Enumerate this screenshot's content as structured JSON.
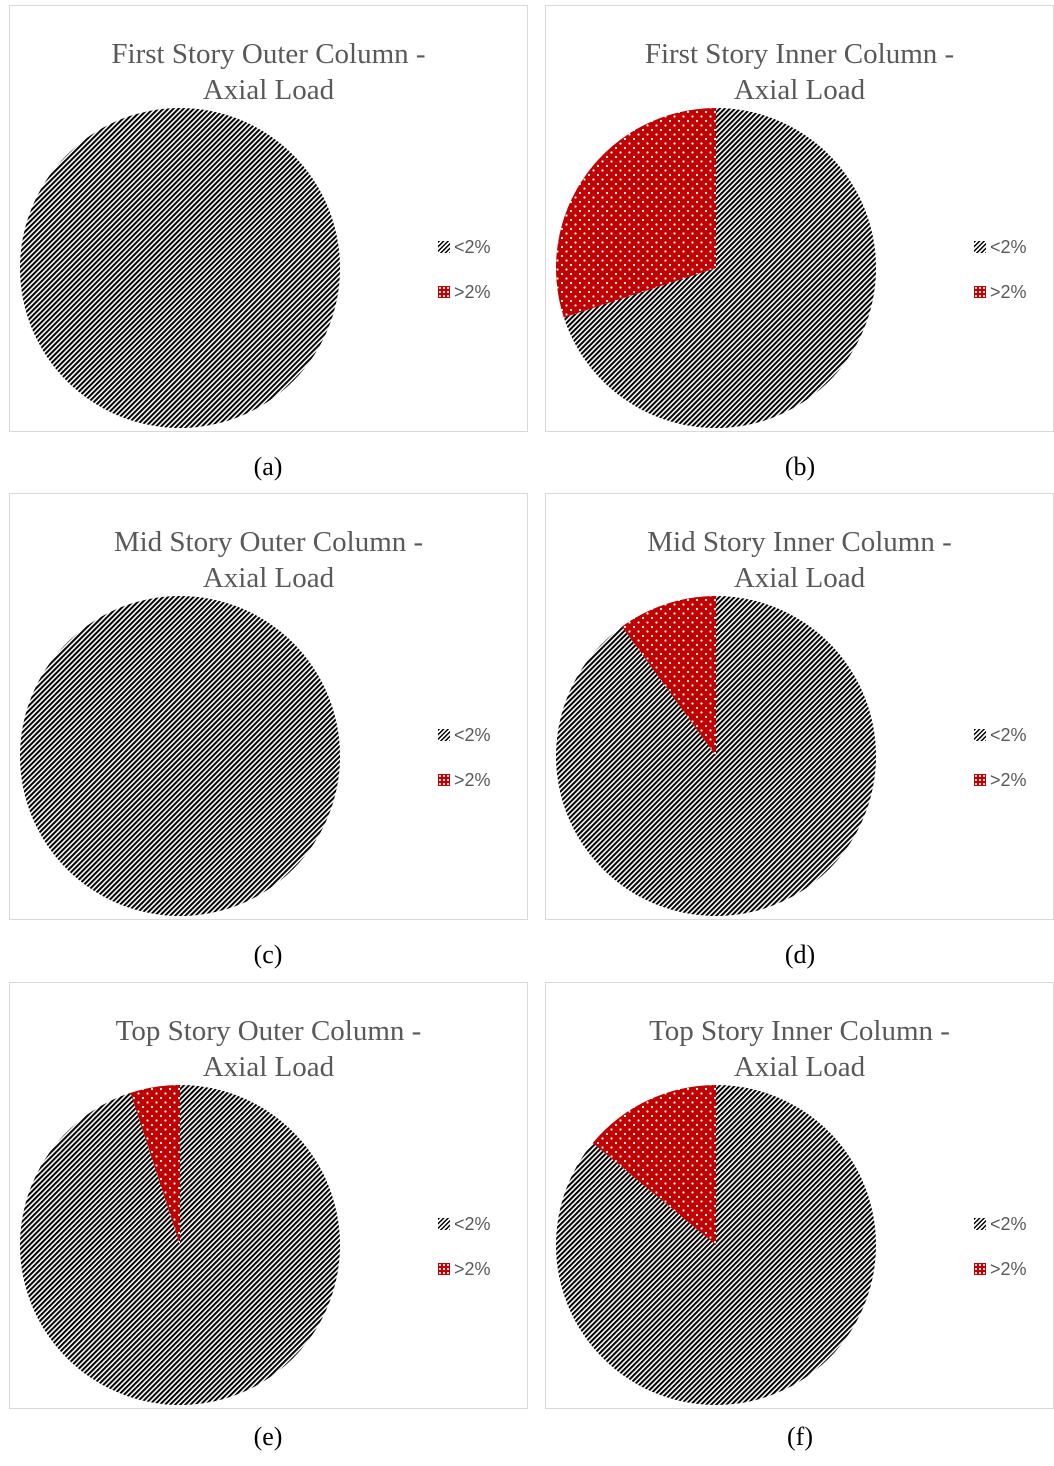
{
  "colors": {
    "below": "#000000",
    "above": "#c00000",
    "border": "#d9d9d9",
    "text": "#595959"
  },
  "chart_data": [
    {
      "type": "pie",
      "title_line1": "First Story Outer Column -",
      "title_line2": "Axial Load",
      "labels": [
        "<2%",
        ">2%"
      ],
      "values": [
        100,
        0
      ],
      "caption": "(a)",
      "legend_position": "right"
    },
    {
      "type": "pie",
      "title_line1": "First Story Inner Column -",
      "title_line2": "Axial Load",
      "labels": [
        "<2%",
        ">2%"
      ],
      "values": [
        70,
        30
      ],
      "caption": "(b)",
      "legend_position": "right"
    },
    {
      "type": "pie",
      "title_line1": "Mid Story Outer Column -",
      "title_line2": "Axial Load",
      "labels": [
        "<2%",
        ">2%"
      ],
      "values": [
        100,
        0
      ],
      "caption": "(c)",
      "legend_position": "right"
    },
    {
      "type": "pie",
      "title_line1": "Mid Story Inner Column -",
      "title_line2": "Axial Load",
      "labels": [
        "<2%",
        ">2%"
      ],
      "values": [
        90,
        10
      ],
      "caption": "(d)",
      "legend_position": "right"
    },
    {
      "type": "pie",
      "title_line1": "Top Story Outer Column -",
      "title_line2": "Axial Load",
      "labels": [
        "<2%",
        ">2%"
      ],
      "values": [
        95,
        5
      ],
      "caption": "(e)",
      "legend_position": "right"
    },
    {
      "type": "pie",
      "title_line1": "Top Story Inner Column -",
      "title_line2": "Axial Load",
      "labels": [
        "<2%",
        ">2%"
      ],
      "values": [
        86,
        14
      ],
      "caption": "(f)",
      "legend_position": "right"
    }
  ]
}
